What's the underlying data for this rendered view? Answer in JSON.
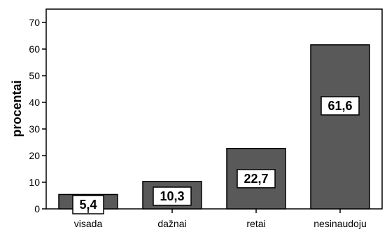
{
  "chart_data": {
    "type": "bar",
    "categories": [
      "visada",
      "dažnai",
      "retai",
      "nesinaudoju"
    ],
    "values": [
      5.4,
      10.3,
      22.7,
      61.6
    ],
    "data_labels": [
      "5,4",
      "10,3",
      "22,7",
      "61,6"
    ],
    "ylabel": "procentai",
    "xlabel": "",
    "ylim": [
      0,
      75
    ],
    "yticks": [
      0,
      10,
      20,
      30,
      40,
      50,
      60,
      70
    ],
    "grid": false,
    "bar_color": "#595959",
    "label_box_color": "#ffffff"
  }
}
